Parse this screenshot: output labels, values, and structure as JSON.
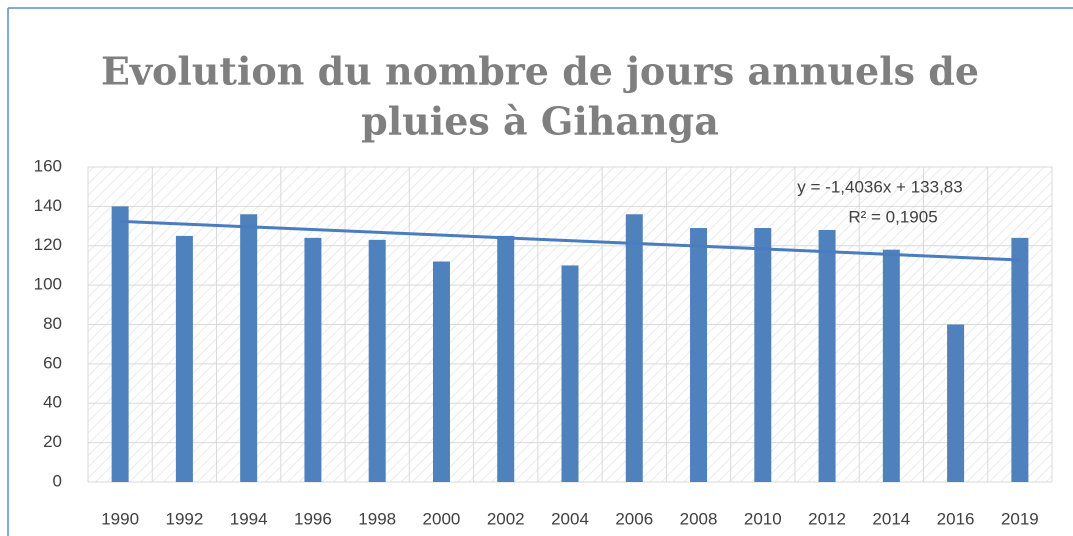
{
  "chart_data": {
    "type": "bar",
    "title": [
      "Evolution du nombre de jours annuels de",
      "pluies à Gihanga"
    ],
    "categories": [
      "1990",
      "1992",
      "1994",
      "1996",
      "1998",
      "2000",
      "2002",
      "2004",
      "2006",
      "2008",
      "2010",
      "2012",
      "2014",
      "2016",
      "2019"
    ],
    "values": [
      140,
      125,
      136,
      124,
      123,
      112,
      125,
      110,
      136,
      129,
      129,
      128,
      118,
      80,
      124
    ],
    "color": "#4f81bd",
    "ylim": [
      0,
      160
    ],
    "yticks": [
      0,
      20,
      40,
      60,
      80,
      100,
      120,
      140,
      160
    ],
    "grid": true,
    "trendline": {
      "slope": -1.4036,
      "intercept": 133.83,
      "color": "#4a7cc0",
      "equation": "y = -1,4036x + 133,83",
      "r2": "R² = 0,1905"
    }
  }
}
